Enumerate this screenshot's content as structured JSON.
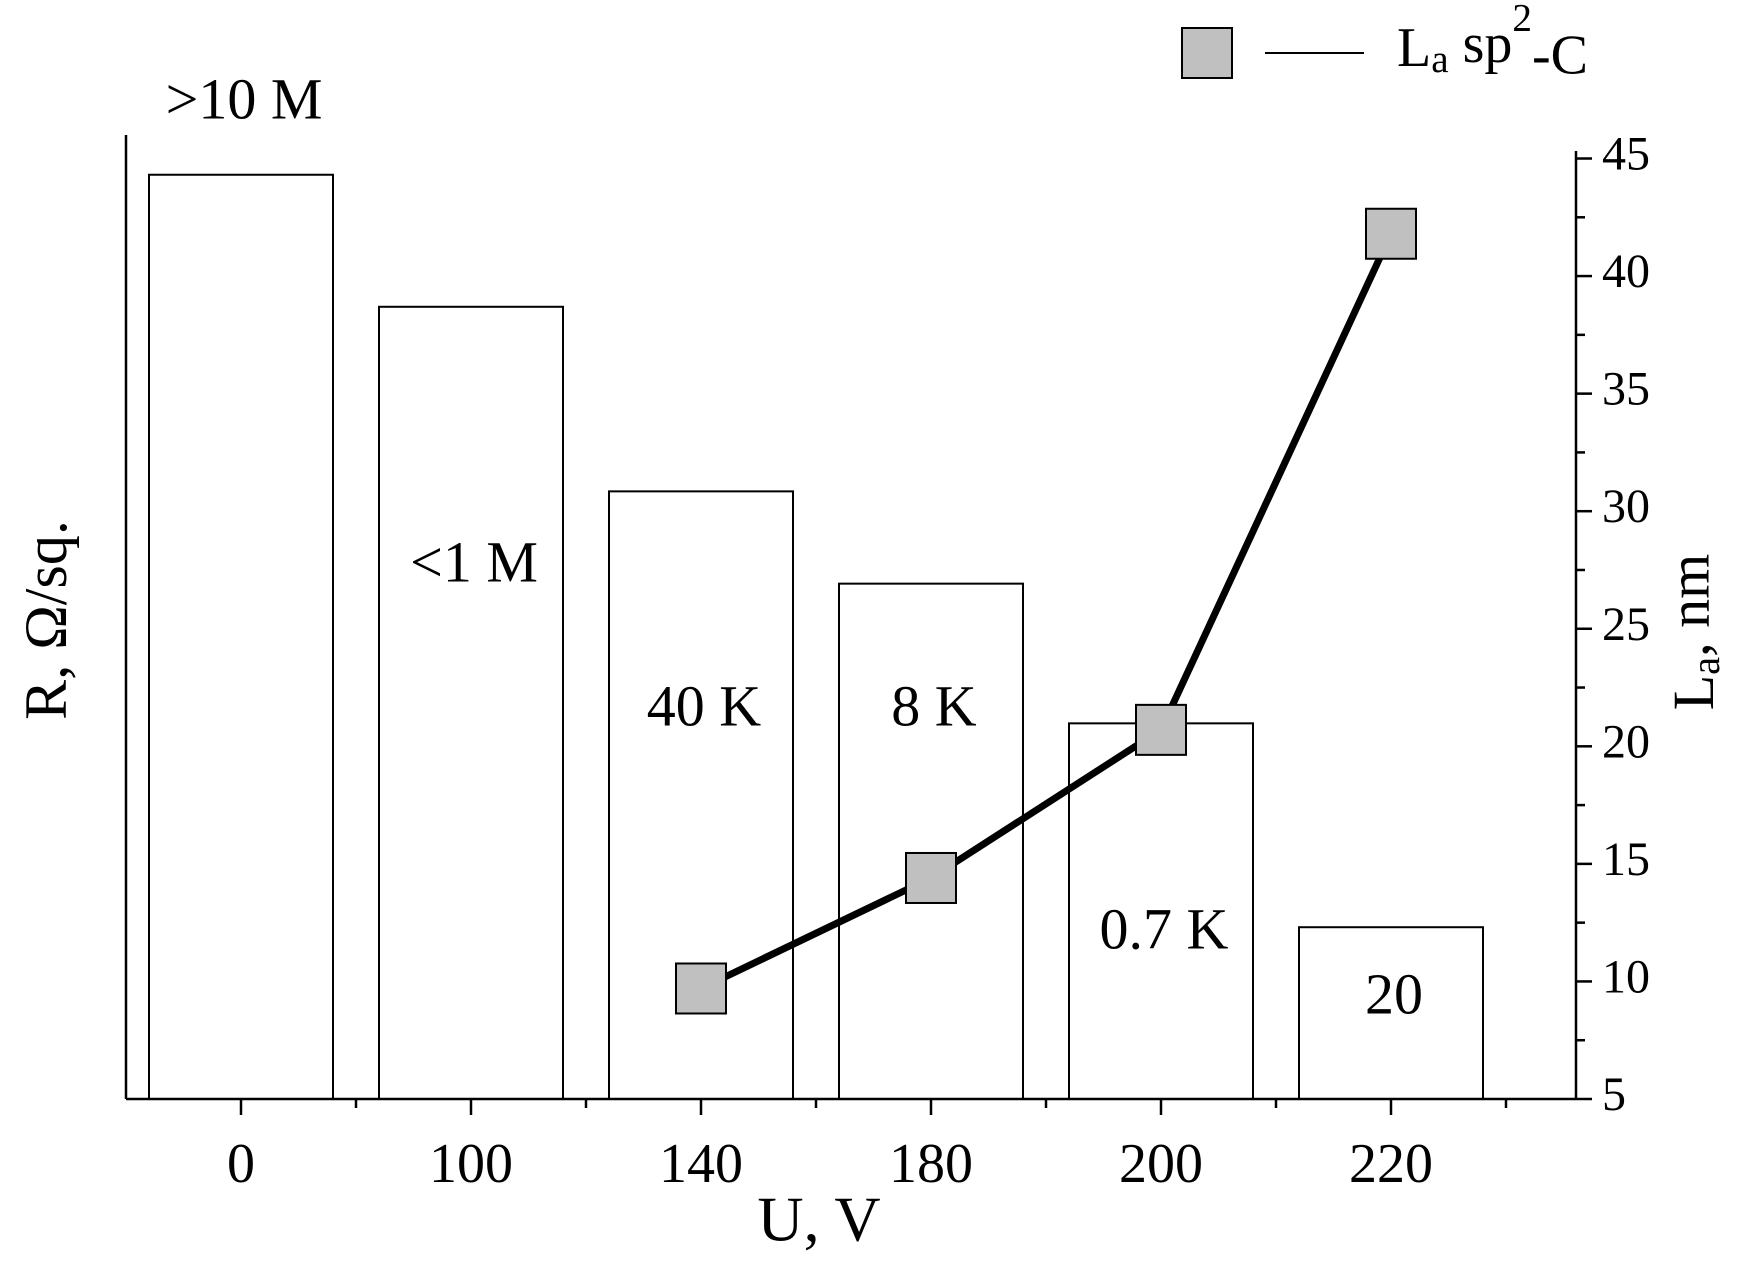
{
  "chart_data": {
    "type": "bar-line",
    "categories": [
      "0",
      "100",
      "140",
      "180",
      "200",
      "220"
    ],
    "xlabel": "U, V",
    "ylabel": "R, Ω/sq.",
    "y2label": "La, nm",
    "ylog": true,
    "ylim": [
      1,
      20000000
    ],
    "y2lim": [
      5,
      46
    ],
    "y2ticks": [
      5,
      10,
      15,
      20,
      25,
      30,
      35,
      40,
      45
    ],
    "series": [
      {
        "name": "R",
        "type": "bar",
        "color": "#ffffff",
        "values": [
          10000000,
          1000000,
          40000,
          8000,
          700,
          20
        ],
        "value_labels": [
          ">10 M",
          "<1 M",
          "40 K",
          "8 K",
          "0.7 K",
          "20"
        ]
      },
      {
        "name": "La sp2-C",
        "type": "line",
        "axis": "y2",
        "color": "#000000",
        "marker_color": "#c0c0c0",
        "values": [
          null,
          null,
          9.7,
          14.4,
          20.7,
          41.8
        ]
      }
    ],
    "legend": "top-right"
  }
}
